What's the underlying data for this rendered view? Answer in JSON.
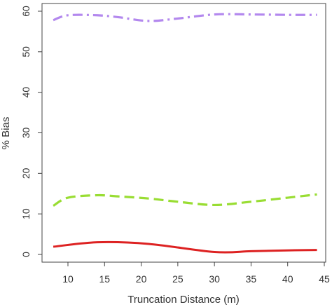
{
  "chart_data": {
    "type": "line",
    "title": "",
    "xlabel": "Truncation Distance (m)",
    "ylabel": "% Bias",
    "xlim": [
      8,
      45
    ],
    "ylim": [
      0,
      60
    ],
    "xticks": [
      10,
      15,
      20,
      25,
      30,
      35,
      40,
      45
    ],
    "yticks": [
      0,
      10,
      20,
      30,
      40,
      50,
      60
    ],
    "xtick_labels": [
      "10",
      "15",
      "20",
      "25",
      "30",
      "35",
      "40",
      "45"
    ],
    "ytick_labels": [
      "0",
      "10",
      "20",
      "30",
      "40",
      "50",
      "60"
    ],
    "grid": false,
    "legend": "none",
    "series": [
      {
        "style": "dot-dash",
        "color": "#b388ee",
        "x": [
          8,
          10,
          14,
          17,
          21,
          25,
          30,
          35,
          40,
          44
        ],
        "y": [
          57.8,
          59.0,
          59.0,
          58.5,
          57.6,
          58.2,
          59.2,
          59.2,
          59.1,
          59.1
        ]
      },
      {
        "style": "dashed",
        "color": "#99dd33",
        "x": [
          8,
          10,
          14,
          17,
          21,
          25,
          30,
          35,
          40,
          44
        ],
        "y": [
          12.0,
          14.0,
          14.6,
          14.3,
          13.8,
          13.0,
          12.2,
          13.0,
          14.0,
          14.8
        ]
      },
      {
        "style": "solid",
        "color": "#dd2222",
        "x": [
          8,
          14,
          21,
          30,
          35,
          40,
          44
        ],
        "y": [
          1.9,
          3.0,
          2.6,
          0.6,
          0.8,
          1.0,
          1.1
        ]
      }
    ]
  }
}
